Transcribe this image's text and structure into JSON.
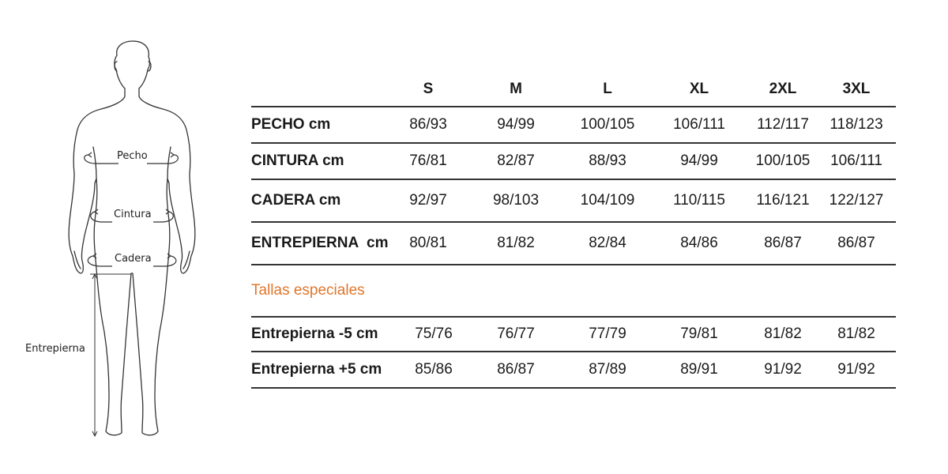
{
  "figure": {
    "labels": {
      "pecho": "Pecho",
      "cintura": "Cintura",
      "cadera": "Cadera",
      "entrepierna": "Entrepierna"
    }
  },
  "table": {
    "sizes": [
      "S",
      "M",
      "L",
      "XL",
      "2XL",
      "3XL"
    ],
    "rows": [
      {
        "label": "PECHO cm",
        "values": [
          "86/93",
          "94/99",
          "100/105",
          "106/111",
          "112/117",
          "118/123"
        ]
      },
      {
        "label": "CINTURA cm",
        "values": [
          "76/81",
          "82/87",
          "88/93",
          "94/99",
          "100/105",
          "106/111"
        ]
      },
      {
        "label": "CADERA cm",
        "values": [
          "92/97",
          "98/103",
          "104/109",
          "110/115",
          "116/121",
          "122/127"
        ]
      },
      {
        "label": "ENTREPIERNA  cm",
        "values": [
          "80/81",
          "81/82",
          "82/84",
          "84/86",
          "86/87",
          "86/87"
        ]
      }
    ],
    "special_title": "Tallas especiales",
    "special_rows": [
      {
        "label": "Entrepierna -5 cm",
        "values": [
          "75/76",
          "76/77",
          "77/79",
          "79/81",
          "81/82",
          "81/82"
        ]
      },
      {
        "label": "Entrepierna +5 cm",
        "values": [
          "85/86",
          "86/87",
          "87/89",
          "89/91",
          "91/92",
          "91/92"
        ]
      }
    ]
  },
  "colors": {
    "accent": "#e0762b",
    "rule": "#333333",
    "text": "#1a1a1a"
  }
}
